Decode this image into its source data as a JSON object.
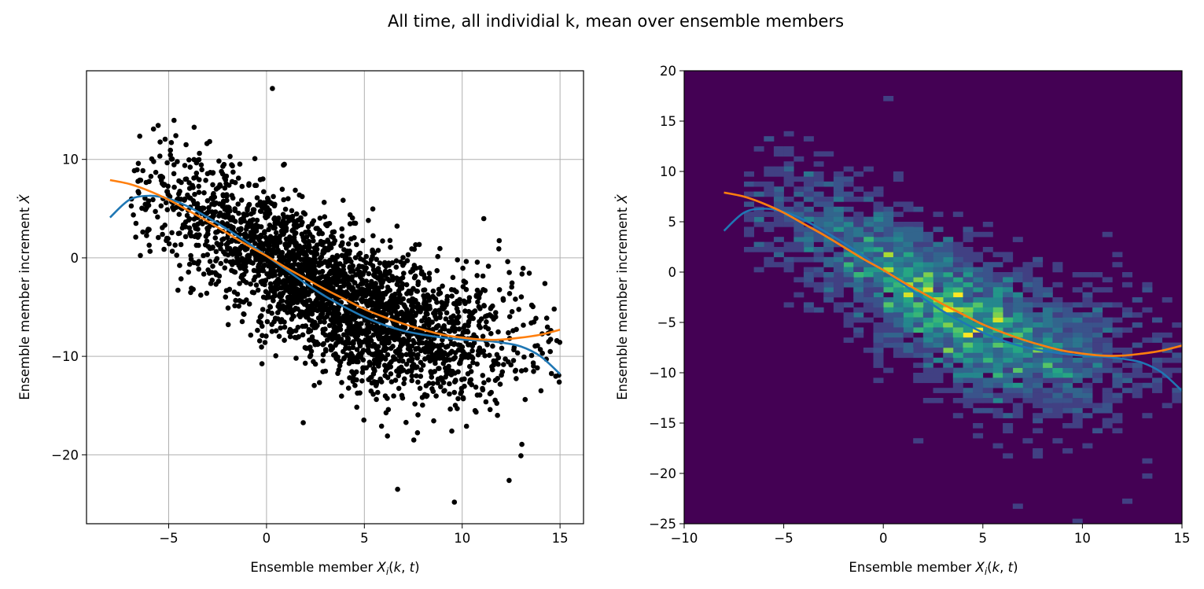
{
  "figure": {
    "suptitle": "All time, all individial k, mean over ensemble members"
  },
  "colors": {
    "scatter_points": "#000000",
    "curve_blue": "#1f77b4",
    "curve_orange": "#ff7f0e",
    "grid": "#b0b0b0",
    "hist_background": "#440154"
  },
  "chart_data": [
    {
      "type": "scatter",
      "xlabel": "Ensemble member X_i(k, t)",
      "ylabel": "Ensemble member increment Ẋ",
      "xlim": [
        -9.2,
        16.2
      ],
      "ylim": [
        -27,
        19
      ],
      "xticks": [
        -5,
        0,
        5,
        10,
        15
      ],
      "xtick_labels": [
        "−5",
        "0",
        "5",
        "10",
        "15"
      ],
      "yticks": [
        -20,
        -10,
        0,
        10
      ],
      "ytick_labels": [
        "−20",
        "−10",
        "0",
        "10"
      ],
      "grid": true,
      "points": {
        "count_shown": "about 3000 points",
        "trend": "decreasing, roughly following the fitted curves",
        "x_range": [
          -7,
          15
        ],
        "y_range": [
          -25,
          17
        ],
        "notable_outliers": [
          [
            0.3,
            17.2
          ],
          [
            9.6,
            -24.8
          ],
          [
            6.7,
            -23.5
          ],
          [
            12.4,
            -22.6
          ],
          [
            13.0,
            -20.1
          ]
        ]
      },
      "series": [
        {
          "color": "blue",
          "x": [
            -8,
            -7,
            -6,
            -5,
            -4,
            -3,
            -2,
            -1,
            0,
            1,
            2,
            3,
            4,
            5,
            6,
            7,
            8,
            9,
            10,
            11,
            12,
            13,
            14,
            15
          ],
          "y": [
            4.1,
            5.9,
            6.3,
            6.0,
            5.2,
            4.1,
            2.9,
            1.6,
            0.2,
            -1.2,
            -2.6,
            -3.9,
            -5.0,
            -6.0,
            -6.8,
            -7.4,
            -7.8,
            -8.1,
            -8.3,
            -8.4,
            -8.6,
            -9.0,
            -10.0,
            -11.8
          ]
        },
        {
          "color": "orange",
          "x": [
            -8,
            -7,
            -6,
            -5,
            -4,
            -3,
            -2,
            -1,
            0,
            1,
            2,
            3,
            4,
            5,
            6,
            7,
            8,
            9,
            10,
            11,
            12,
            13,
            14,
            15
          ],
          "y": [
            7.9,
            7.5,
            6.8,
            5.9,
            4.8,
            3.7,
            2.5,
            1.3,
            0.2,
            -1.0,
            -2.1,
            -3.2,
            -4.2,
            -5.2,
            -6.0,
            -6.7,
            -7.3,
            -7.8,
            -8.1,
            -8.3,
            -8.3,
            -8.1,
            -7.8,
            -7.3
          ]
        }
      ]
    },
    {
      "type": "heatmap",
      "xlabel": "Ensemble member X_i(k, t)",
      "ylabel": "Ensemble member increment Ẋ",
      "xlim": [
        -10,
        15
      ],
      "ylim": [
        -25,
        20
      ],
      "xticks": [
        -10,
        -5,
        0,
        5,
        10,
        15
      ],
      "xtick_labels": [
        "−10",
        "−5",
        "0",
        "5",
        "10",
        "15"
      ],
      "yticks": [
        -25,
        -20,
        -15,
        -10,
        -5,
        0,
        5,
        10,
        15,
        20
      ],
      "ytick_labels": [
        "−25",
        "−20",
        "−15",
        "−10",
        "−5",
        "0",
        "5",
        "10",
        "15",
        "20"
      ],
      "grid": false,
      "colormap": "viridis",
      "bin_width_x": 0.5,
      "bin_height_y": 0.5,
      "density": "2D histogram of the same points; highest counts near x=0–5, y=0 to −8",
      "series": [
        {
          "color": "blue",
          "x": [
            -8,
            -7,
            -6,
            -5,
            -4,
            -3,
            -2,
            -1,
            0,
            1,
            2,
            3,
            4,
            5,
            6,
            7,
            8,
            9,
            10,
            11,
            12,
            13,
            14,
            15
          ],
          "y": [
            4.1,
            5.9,
            6.3,
            6.0,
            5.2,
            4.1,
            2.9,
            1.6,
            0.2,
            -1.2,
            -2.6,
            -3.9,
            -5.0,
            -6.0,
            -6.8,
            -7.4,
            -7.8,
            -8.1,
            -8.3,
            -8.4,
            -8.6,
            -9.0,
            -10.0,
            -11.8
          ]
        },
        {
          "color": "orange",
          "x": [
            -8,
            -7,
            -6,
            -5,
            -4,
            -3,
            -2,
            -1,
            0,
            1,
            2,
            3,
            4,
            5,
            6,
            7,
            8,
            9,
            10,
            11,
            12,
            13,
            14,
            15
          ],
          "y": [
            7.9,
            7.5,
            6.8,
            5.9,
            4.8,
            3.7,
            2.5,
            1.3,
            0.2,
            -1.0,
            -2.1,
            -3.2,
            -4.2,
            -5.2,
            -6.0,
            -6.7,
            -7.3,
            -7.8,
            -8.1,
            -8.3,
            -8.3,
            -8.1,
            -7.8,
            -7.3
          ]
        }
      ]
    }
  ]
}
